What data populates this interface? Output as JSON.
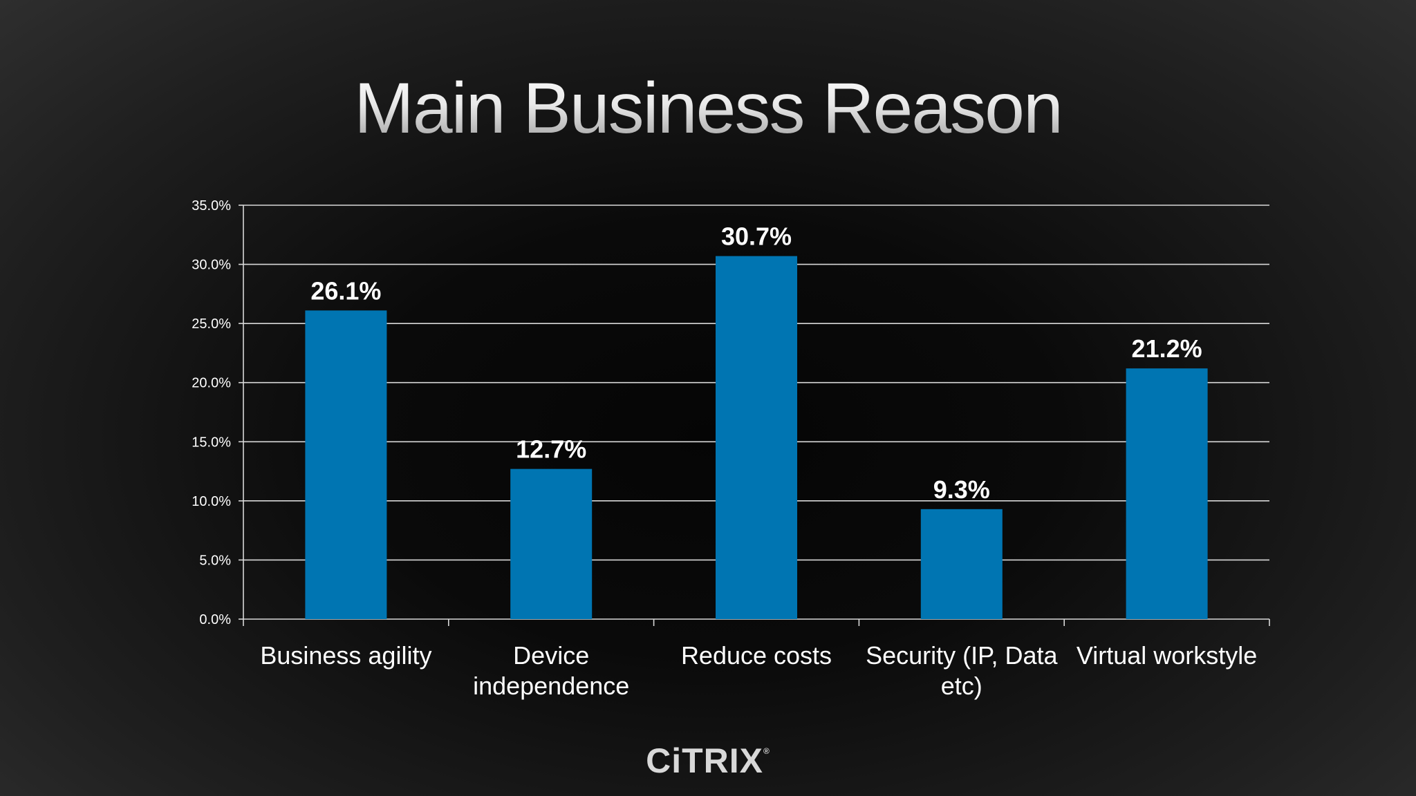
{
  "slide": {
    "title": "Main Business Reason",
    "logo_text": "CiTRIX"
  },
  "colors": {
    "bar": "#0075b2",
    "grid": "#d9d9d9",
    "axis_text": "#ffffff"
  },
  "chart_data": {
    "type": "bar",
    "title": "",
    "xlabel": "",
    "ylabel": "",
    "categories": [
      [
        "Business agility"
      ],
      [
        "Device",
        "independence"
      ],
      [
        "Reduce costs"
      ],
      [
        "Security (IP, Data",
        "etc)"
      ],
      [
        "Virtual workstyle"
      ]
    ],
    "values": [
      26.1,
      12.7,
      30.7,
      9.3,
      21.2
    ],
    "value_labels": [
      "26.1%",
      "12.7%",
      "30.7%",
      "9.3%",
      "21.2%"
    ],
    "ylim": [
      0,
      35
    ],
    "yticks": [
      0,
      5,
      10,
      15,
      20,
      25,
      30,
      35
    ],
    "ytick_labels": [
      "0.0%",
      "5.0%",
      "10.0%",
      "15.0%",
      "20.0%",
      "25.0%",
      "30.0%",
      "35.0%"
    ],
    "grid": true,
    "legend": "none"
  }
}
